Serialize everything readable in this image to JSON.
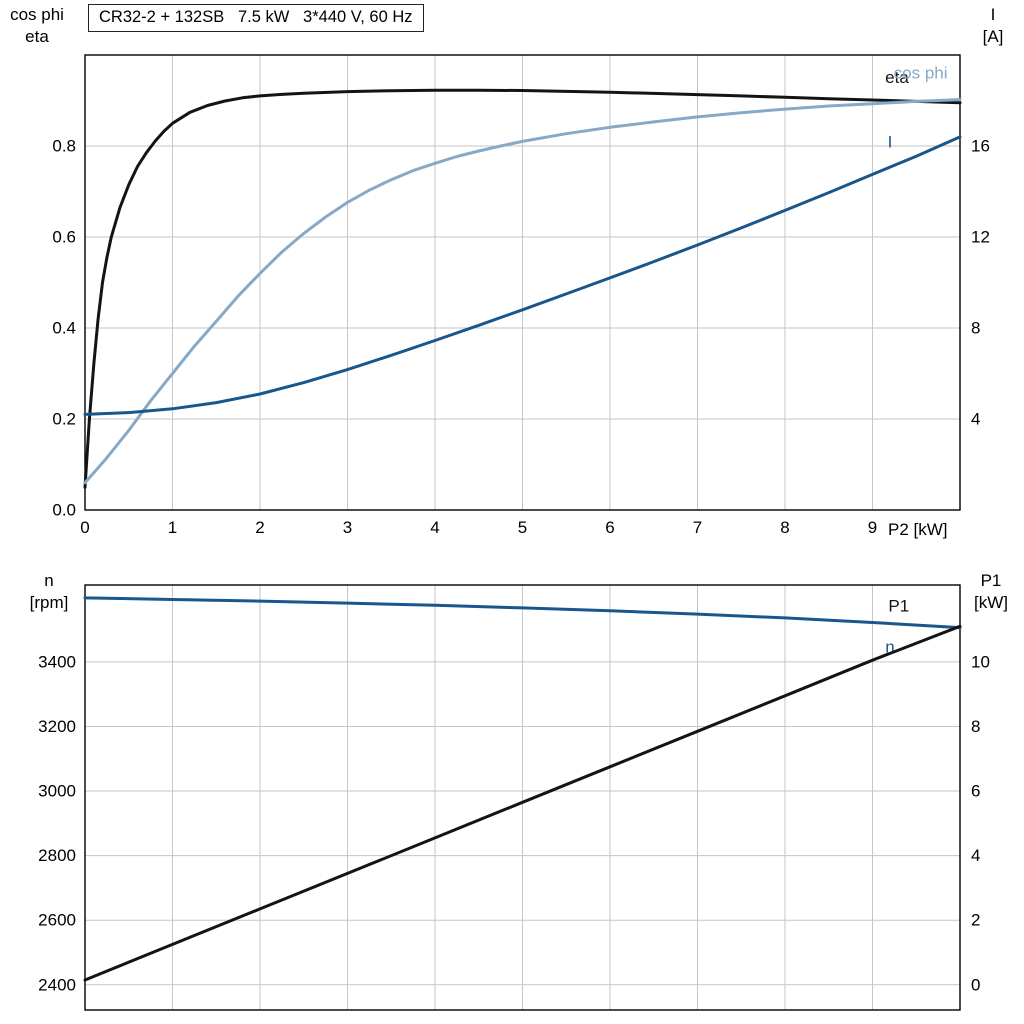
{
  "title_box": {
    "text": "CR32-2 + 132SB   7.5 kW   3*440 V, 60 Hz"
  },
  "labels": {
    "top_left1": "cos phi",
    "top_left2": "eta",
    "top_right1": "I",
    "top_right2": "[A]",
    "x_label": "P2 [kW]",
    "bot_left1": "n",
    "bot_left2": "[rpm]",
    "bot_right1": "P1",
    "bot_right2": "[kW]"
  },
  "colors": {
    "black": "#141414",
    "dark_blue": "#19568c",
    "light_blue": "#87a9c8",
    "grid": "#c6c6c6",
    "axis": "#000000",
    "text": "#000000"
  },
  "chart_data": [
    {
      "type": "line",
      "title": "CR32-2 + 132SB   7.5 kW   3*440 V, 60 Hz",
      "grid": true,
      "x_axis": {
        "min": 0,
        "max": 10,
        "ticks": [
          0,
          1,
          2,
          3,
          4,
          5,
          6,
          7,
          8,
          9
        ],
        "show_tick_labels": true,
        "label": "P2 [kW]"
      },
      "left_axis": {
        "min": 0,
        "max": 1.0,
        "ticks": [
          0.0,
          0.2,
          0.4,
          0.6,
          0.8
        ],
        "tick_labels": [
          "0.0",
          "0.2",
          "0.4",
          "0.6",
          "0.8"
        ],
        "label": "cos phi / eta"
      },
      "right_axis": {
        "min": 0,
        "max": 20,
        "ticks": [
          4,
          8,
          12,
          16
        ],
        "tick_labels": [
          "4",
          "8",
          "12",
          "16"
        ],
        "label": "I [A]"
      },
      "series": [
        {
          "name": "eta",
          "axis": "left",
          "color_key": "black",
          "width": 3,
          "label": {
            "text": "eta",
            "x": 9.28,
            "v": 0.952,
            "color_key": "black"
          },
          "points": [
            [
              0,
              0.05
            ],
            [
              0.05,
              0.2
            ],
            [
              0.1,
              0.32
            ],
            [
              0.15,
              0.42
            ],
            [
              0.2,
              0.5
            ],
            [
              0.25,
              0.555
            ],
            [
              0.3,
              0.6
            ],
            [
              0.4,
              0.665
            ],
            [
              0.5,
              0.715
            ],
            [
              0.6,
              0.755
            ],
            [
              0.7,
              0.785
            ],
            [
              0.8,
              0.81
            ],
            [
              0.9,
              0.832
            ],
            [
              1.0,
              0.85
            ],
            [
              1.2,
              0.874
            ],
            [
              1.4,
              0.889
            ],
            [
              1.6,
              0.899
            ],
            [
              1.8,
              0.906
            ],
            [
              2.0,
              0.91
            ],
            [
              2.25,
              0.9135
            ],
            [
              2.5,
              0.916
            ],
            [
              3.0,
              0.9195
            ],
            [
              3.5,
              0.9215
            ],
            [
              4.0,
              0.9225
            ],
            [
              4.5,
              0.9225
            ],
            [
              5.0,
              0.922
            ],
            [
              5.5,
              0.92
            ],
            [
              6.0,
              0.918
            ],
            [
              6.5,
              0.9155
            ],
            [
              7.0,
              0.913
            ],
            [
              7.5,
              0.91
            ],
            [
              8.0,
              0.907
            ],
            [
              8.5,
              0.904
            ],
            [
              9.0,
              0.901
            ],
            [
              9.5,
              0.898
            ],
            [
              10,
              0.895
            ]
          ]
        },
        {
          "name": "cos phi",
          "axis": "left",
          "color_key": "light_blue",
          "width": 3,
          "label": {
            "text": "cos phi",
            "x": 9.55,
            "v": 0.962,
            "color_key": "light_blue"
          },
          "points": [
            [
              0,
              0.06
            ],
            [
              0.25,
              0.115
            ],
            [
              0.5,
              0.175
            ],
            [
              0.75,
              0.24
            ],
            [
              1.0,
              0.3
            ],
            [
              1.25,
              0.36
            ],
            [
              1.5,
              0.415
            ],
            [
              1.75,
              0.47
            ],
            [
              2.0,
              0.52
            ],
            [
              2.25,
              0.567
            ],
            [
              2.5,
              0.608
            ],
            [
              2.75,
              0.644
            ],
            [
              3.0,
              0.676
            ],
            [
              3.25,
              0.703
            ],
            [
              3.5,
              0.726
            ],
            [
              3.75,
              0.746
            ],
            [
              4.0,
              0.762
            ],
            [
              4.25,
              0.777
            ],
            [
              4.5,
              0.789
            ],
            [
              4.75,
              0.8
            ],
            [
              5.0,
              0.81
            ],
            [
              5.5,
              0.827
            ],
            [
              6.0,
              0.841
            ],
            [
              6.5,
              0.853
            ],
            [
              7.0,
              0.864
            ],
            [
              7.5,
              0.873
            ],
            [
              8.0,
              0.881
            ],
            [
              8.5,
              0.888
            ],
            [
              9.0,
              0.893
            ],
            [
              9.5,
              0.898
            ],
            [
              10,
              0.902
            ]
          ]
        },
        {
          "name": "I",
          "axis": "right",
          "color_key": "dark_blue",
          "width": 3,
          "label": {
            "text": "I",
            "x": 9.2,
            "v": 16.2,
            "color_key": "dark_blue"
          },
          "points": [
            [
              0,
              4.2
            ],
            [
              0.5,
              4.28
            ],
            [
              1.0,
              4.45
            ],
            [
              1.5,
              4.72
            ],
            [
              2.0,
              5.1
            ],
            [
              2.5,
              5.6
            ],
            [
              3.0,
              6.17
            ],
            [
              3.5,
              6.8
            ],
            [
              4.0,
              7.45
            ],
            [
              4.5,
              8.12
            ],
            [
              5.0,
              8.8
            ],
            [
              5.5,
              9.5
            ],
            [
              6.0,
              10.2
            ],
            [
              6.5,
              10.92
            ],
            [
              7.0,
              11.65
            ],
            [
              7.5,
              12.4
            ],
            [
              8.0,
              13.17
            ],
            [
              8.5,
              13.95
            ],
            [
              9.0,
              14.75
            ],
            [
              9.5,
              15.55
            ],
            [
              10,
              16.4
            ]
          ]
        }
      ]
    },
    {
      "type": "line",
      "title": "",
      "grid": true,
      "x_axis": {
        "min": 0,
        "max": 10,
        "ticks": [
          1,
          2,
          3,
          4,
          5,
          6,
          7,
          8,
          9
        ],
        "show_tick_labels": false,
        "label": ""
      },
      "left_axis": {
        "min": 2322,
        "max": 3638,
        "ticks": [
          2400,
          2600,
          2800,
          3000,
          3200,
          3400
        ],
        "tick_labels": [
          "2400",
          "2600",
          "2800",
          "3000",
          "3200",
          "3400"
        ],
        "label": "n [rpm]"
      },
      "right_axis": {
        "min": -0.78,
        "max": 12.38,
        "ticks": [
          0,
          2,
          4,
          6,
          8,
          10
        ],
        "tick_labels": [
          "0",
          "2",
          "4",
          "6",
          "8",
          "10"
        ],
        "label": "P1 [kW]"
      },
      "series": [
        {
          "name": "n",
          "axis": "left",
          "color_key": "dark_blue",
          "width": 3,
          "label": {
            "text": "n",
            "x": 9.2,
            "v": 3448,
            "color_key": "dark_blue"
          },
          "points": [
            [
              0,
              3598
            ],
            [
              1,
              3593
            ],
            [
              2,
              3588
            ],
            [
              3,
              3582
            ],
            [
              4,
              3575
            ],
            [
              5,
              3567
            ],
            [
              6,
              3558
            ],
            [
              7,
              3548
            ],
            [
              8,
              3536
            ],
            [
              9,
              3522
            ],
            [
              10,
              3506
            ]
          ]
        },
        {
          "name": "P1",
          "axis": "right",
          "color_key": "black",
          "width": 3,
          "label": {
            "text": "P1",
            "x": 9.3,
            "v": 11.75,
            "color_key": "black"
          },
          "points": [
            [
              0,
              0.15
            ],
            [
              1,
              1.25
            ],
            [
              2,
              2.35
            ],
            [
              3,
              3.45
            ],
            [
              4,
              4.55
            ],
            [
              5,
              5.65
            ],
            [
              6,
              6.75
            ],
            [
              7,
              7.85
            ],
            [
              8,
              8.95
            ],
            [
              9,
              10.05
            ],
            [
              10,
              11.1
            ]
          ]
        }
      ]
    }
  ]
}
